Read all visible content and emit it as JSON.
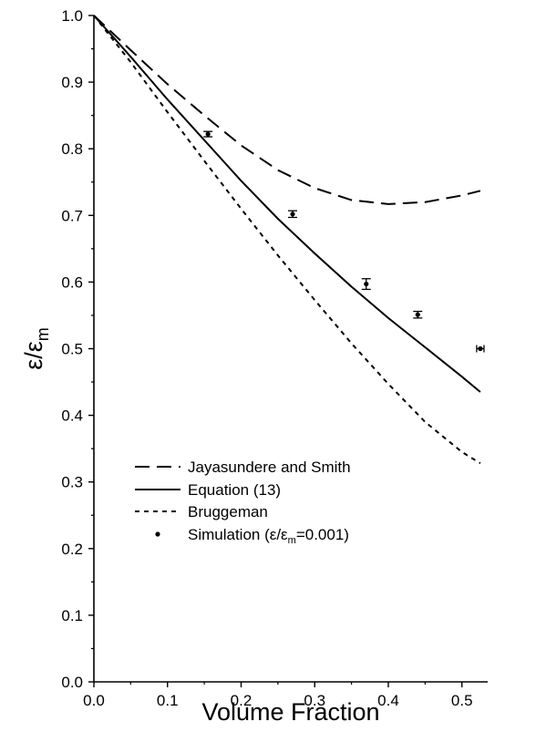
{
  "chart_data": {
    "type": "line",
    "title": "",
    "xlabel": "Volume Fraction",
    "ylabel": {
      "main": "ε/ε",
      "sub": "m"
    },
    "xlim": [
      0.0,
      0.535
    ],
    "ylim": [
      0.0,
      1.0
    ],
    "x_ticks": [
      "0.0",
      "0.1",
      "0.2",
      "0.3",
      "0.4",
      "0.5"
    ],
    "y_ticks": [
      "0.0",
      "0.1",
      "0.2",
      "0.3",
      "0.4",
      "0.5",
      "0.6",
      "0.7",
      "0.8",
      "0.9",
      "1.0"
    ],
    "grid": false,
    "legend_position": "lower-middle",
    "series": [
      {
        "name": "Jayasundere and Smith",
        "style": "dashed",
        "x": [
          0.0,
          0.05,
          0.1,
          0.15,
          0.2,
          0.25,
          0.3,
          0.35,
          0.4,
          0.45,
          0.5,
          0.525
        ],
        "y": [
          1.0,
          0.948,
          0.897,
          0.85,
          0.805,
          0.768,
          0.741,
          0.723,
          0.717,
          0.72,
          0.73,
          0.737
        ]
      },
      {
        "name": "Equation (13)",
        "style": "solid",
        "x": [
          0.0,
          0.05,
          0.1,
          0.15,
          0.2,
          0.25,
          0.3,
          0.35,
          0.4,
          0.45,
          0.5,
          0.525
        ],
        "y": [
          1.0,
          0.938,
          0.874,
          0.813,
          0.752,
          0.695,
          0.643,
          0.593,
          0.546,
          0.502,
          0.458,
          0.435
        ]
      },
      {
        "name": "Bruggeman",
        "style": "dotted",
        "x": [
          0.0,
          0.05,
          0.1,
          0.15,
          0.2,
          0.25,
          0.3,
          0.35,
          0.4,
          0.45,
          0.5,
          0.525
        ],
        "y": [
          1.0,
          0.93,
          0.855,
          0.782,
          0.71,
          0.64,
          0.573,
          0.508,
          0.447,
          0.39,
          0.345,
          0.328
        ]
      },
      {
        "name": "Simulation (ε/ε",
        "name_sub": "m",
        "name_suffix": "=0.001)",
        "style": "points",
        "x": [
          0.155,
          0.27,
          0.37,
          0.44,
          0.525
        ],
        "y": [
          0.822,
          0.702,
          0.597,
          0.551,
          0.5
        ],
        "yerr": [
          0.004,
          0.005,
          0.008,
          0.005,
          0.0
        ],
        "xerr": [
          0.0,
          0.0,
          0.0,
          0.0,
          0.005
        ]
      }
    ]
  }
}
